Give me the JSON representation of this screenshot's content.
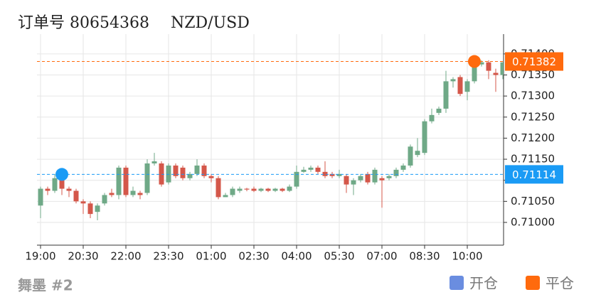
{
  "chart_data": {
    "type": "candlestick",
    "title": "订单号 80654368",
    "subtitle": "NZD/USD",
    "footer": "舞墨 #2",
    "categories": [
      "19:00",
      null,
      null,
      null,
      null,
      null,
      "20:30",
      null,
      null,
      null,
      null,
      null,
      "22:00",
      null,
      null,
      null,
      null,
      null,
      "23:30",
      null,
      null,
      null,
      null,
      null,
      "01:00",
      null,
      null,
      null,
      null,
      null,
      "02:30",
      null,
      null,
      null,
      null,
      null,
      "04:00",
      null,
      null,
      null,
      null,
      null,
      "05:30",
      null,
      null,
      null,
      null,
      null,
      "07:00",
      null,
      null,
      null,
      null,
      null,
      "08:30",
      null,
      null,
      null,
      null,
      null,
      "10:00",
      null,
      null,
      null,
      null,
      null
    ],
    "open": [
      0.7104,
      0.7108,
      0.71075,
      0.71105,
      0.7108,
      0.71075,
      0.7105,
      0.71045,
      0.71025,
      0.71045,
      0.7107,
      0.71065,
      0.7113,
      0.71065,
      0.7107,
      0.7107,
      0.7114,
      0.7114,
      0.71095,
      0.71135,
      0.7113,
      0.71105,
      0.71115,
      0.71135,
      0.7111,
      0.71105,
      0.7106,
      0.71065,
      0.71075,
      0.7108,
      0.7108,
      0.71075,
      0.7108,
      0.71075,
      0.7108,
      0.71075,
      0.71085,
      0.7112,
      0.71125,
      0.7113,
      0.7112,
      0.71115,
      0.7111,
      0.7111,
      0.7109,
      0.711,
      0.71115,
      0.71095,
      0.71105,
      0.71105,
      0.7111,
      0.71125,
      0.71135,
      0.7116,
      0.71165,
      0.7124,
      0.7126,
      0.7127,
      0.71335,
      0.71345,
      0.7131,
      0.71335,
      0.71375,
      0.7138,
      0.71355,
      0.7135
    ],
    "high": [
      0.71085,
      0.71085,
      0.71115,
      0.7111,
      0.71085,
      0.7108,
      0.71055,
      0.7105,
      0.71045,
      0.7107,
      0.7108,
      0.71135,
      0.71135,
      0.71085,
      0.71075,
      0.7115,
      0.71165,
      0.71145,
      0.7114,
      0.7114,
      0.71135,
      0.7112,
      0.7115,
      0.7114,
      0.71115,
      0.7111,
      0.7107,
      0.71085,
      0.71085,
      0.71082,
      0.71085,
      0.71082,
      0.71082,
      0.71082,
      0.71082,
      0.7109,
      0.71135,
      0.71132,
      0.71135,
      0.71135,
      0.71145,
      0.7112,
      0.71125,
      0.71115,
      0.71105,
      0.71115,
      0.7112,
      0.7113,
      0.7111,
      0.71115,
      0.7113,
      0.7114,
      0.71185,
      0.712,
      0.71245,
      0.7127,
      0.71275,
      0.7136,
      0.71345,
      0.7135,
      0.7134,
      0.71385,
      0.71385,
      0.71385,
      0.71365,
      0.7138
    ],
    "low": [
      0.7101,
      0.71065,
      0.7107,
      0.71065,
      0.7106,
      0.71045,
      0.7102,
      0.7101,
      0.71005,
      0.7104,
      0.7106,
      0.71055,
      0.7106,
      0.7106,
      0.71055,
      0.71065,
      0.71135,
      0.71085,
      0.7109,
      0.71105,
      0.711,
      0.711,
      0.7111,
      0.71105,
      0.71095,
      0.71055,
      0.7106,
      0.7106,
      0.7107,
      0.71074,
      0.71072,
      0.71072,
      0.71072,
      0.71072,
      0.71072,
      0.71072,
      0.7108,
      0.71118,
      0.7112,
      0.71115,
      0.71105,
      0.71105,
      0.71105,
      0.7107,
      0.71065,
      0.71095,
      0.7109,
      0.7109,
      0.71035,
      0.711,
      0.71105,
      0.7112,
      0.7113,
      0.71155,
      0.7116,
      0.71235,
      0.71255,
      0.7126,
      0.7132,
      0.713,
      0.7129,
      0.7133,
      0.7137,
      0.7134,
      0.7131,
      0.7134
    ],
    "close": [
      0.7108,
      0.71075,
      0.71105,
      0.7108,
      0.71075,
      0.7105,
      0.71045,
      0.7102,
      0.7104,
      0.71065,
      0.71065,
      0.7113,
      0.71065,
      0.71075,
      0.71065,
      0.7114,
      0.71145,
      0.7109,
      0.71135,
      0.7111,
      0.71105,
      0.71115,
      0.71135,
      0.7111,
      0.71105,
      0.7106,
      0.71065,
      0.7108,
      0.7108,
      0.71078,
      0.71075,
      0.7108,
      0.71075,
      0.7108,
      0.71075,
      0.71085,
      0.7112,
      0.71125,
      0.7113,
      0.7112,
      0.7111,
      0.7111,
      0.71115,
      0.7109,
      0.711,
      0.7111,
      0.71095,
      0.71125,
      0.711,
      0.7111,
      0.71125,
      0.71135,
      0.7118,
      0.7117,
      0.7124,
      0.71255,
      0.7127,
      0.71335,
      0.7134,
      0.71305,
      0.71335,
      0.71375,
      0.7138,
      0.7136,
      0.7135,
      0.7138
    ],
    "up_color": "#6fa987",
    "down_color": "#d4574a",
    "ylim": [
      0.70946,
      0.71447
    ],
    "yticks": [
      {
        "value": 0.71,
        "label": "0.71000"
      },
      {
        "value": 0.7105,
        "label": "0.71050"
      },
      {
        "value": 0.711,
        "label": "0.71100"
      },
      {
        "value": 0.7115,
        "label": "0.71150"
      },
      {
        "value": 0.712,
        "label": "0.71200"
      },
      {
        "value": 0.7125,
        "label": "0.71250"
      },
      {
        "value": 0.713,
        "label": "0.71300"
      },
      {
        "value": 0.7135,
        "label": "0.71350"
      },
      {
        "value": 0.714,
        "label": "0.71400"
      }
    ],
    "grid": true,
    "price_lines": [
      {
        "name": "开仓",
        "color": "#1a9bf5",
        "legend_color": "#6a8de0",
        "value": 0.71114,
        "at": 3
      },
      {
        "name": "平仓",
        "color": "#ff6a0d",
        "legend_color": "#ff6a0d",
        "value": 0.71382,
        "at": 61
      }
    ]
  }
}
